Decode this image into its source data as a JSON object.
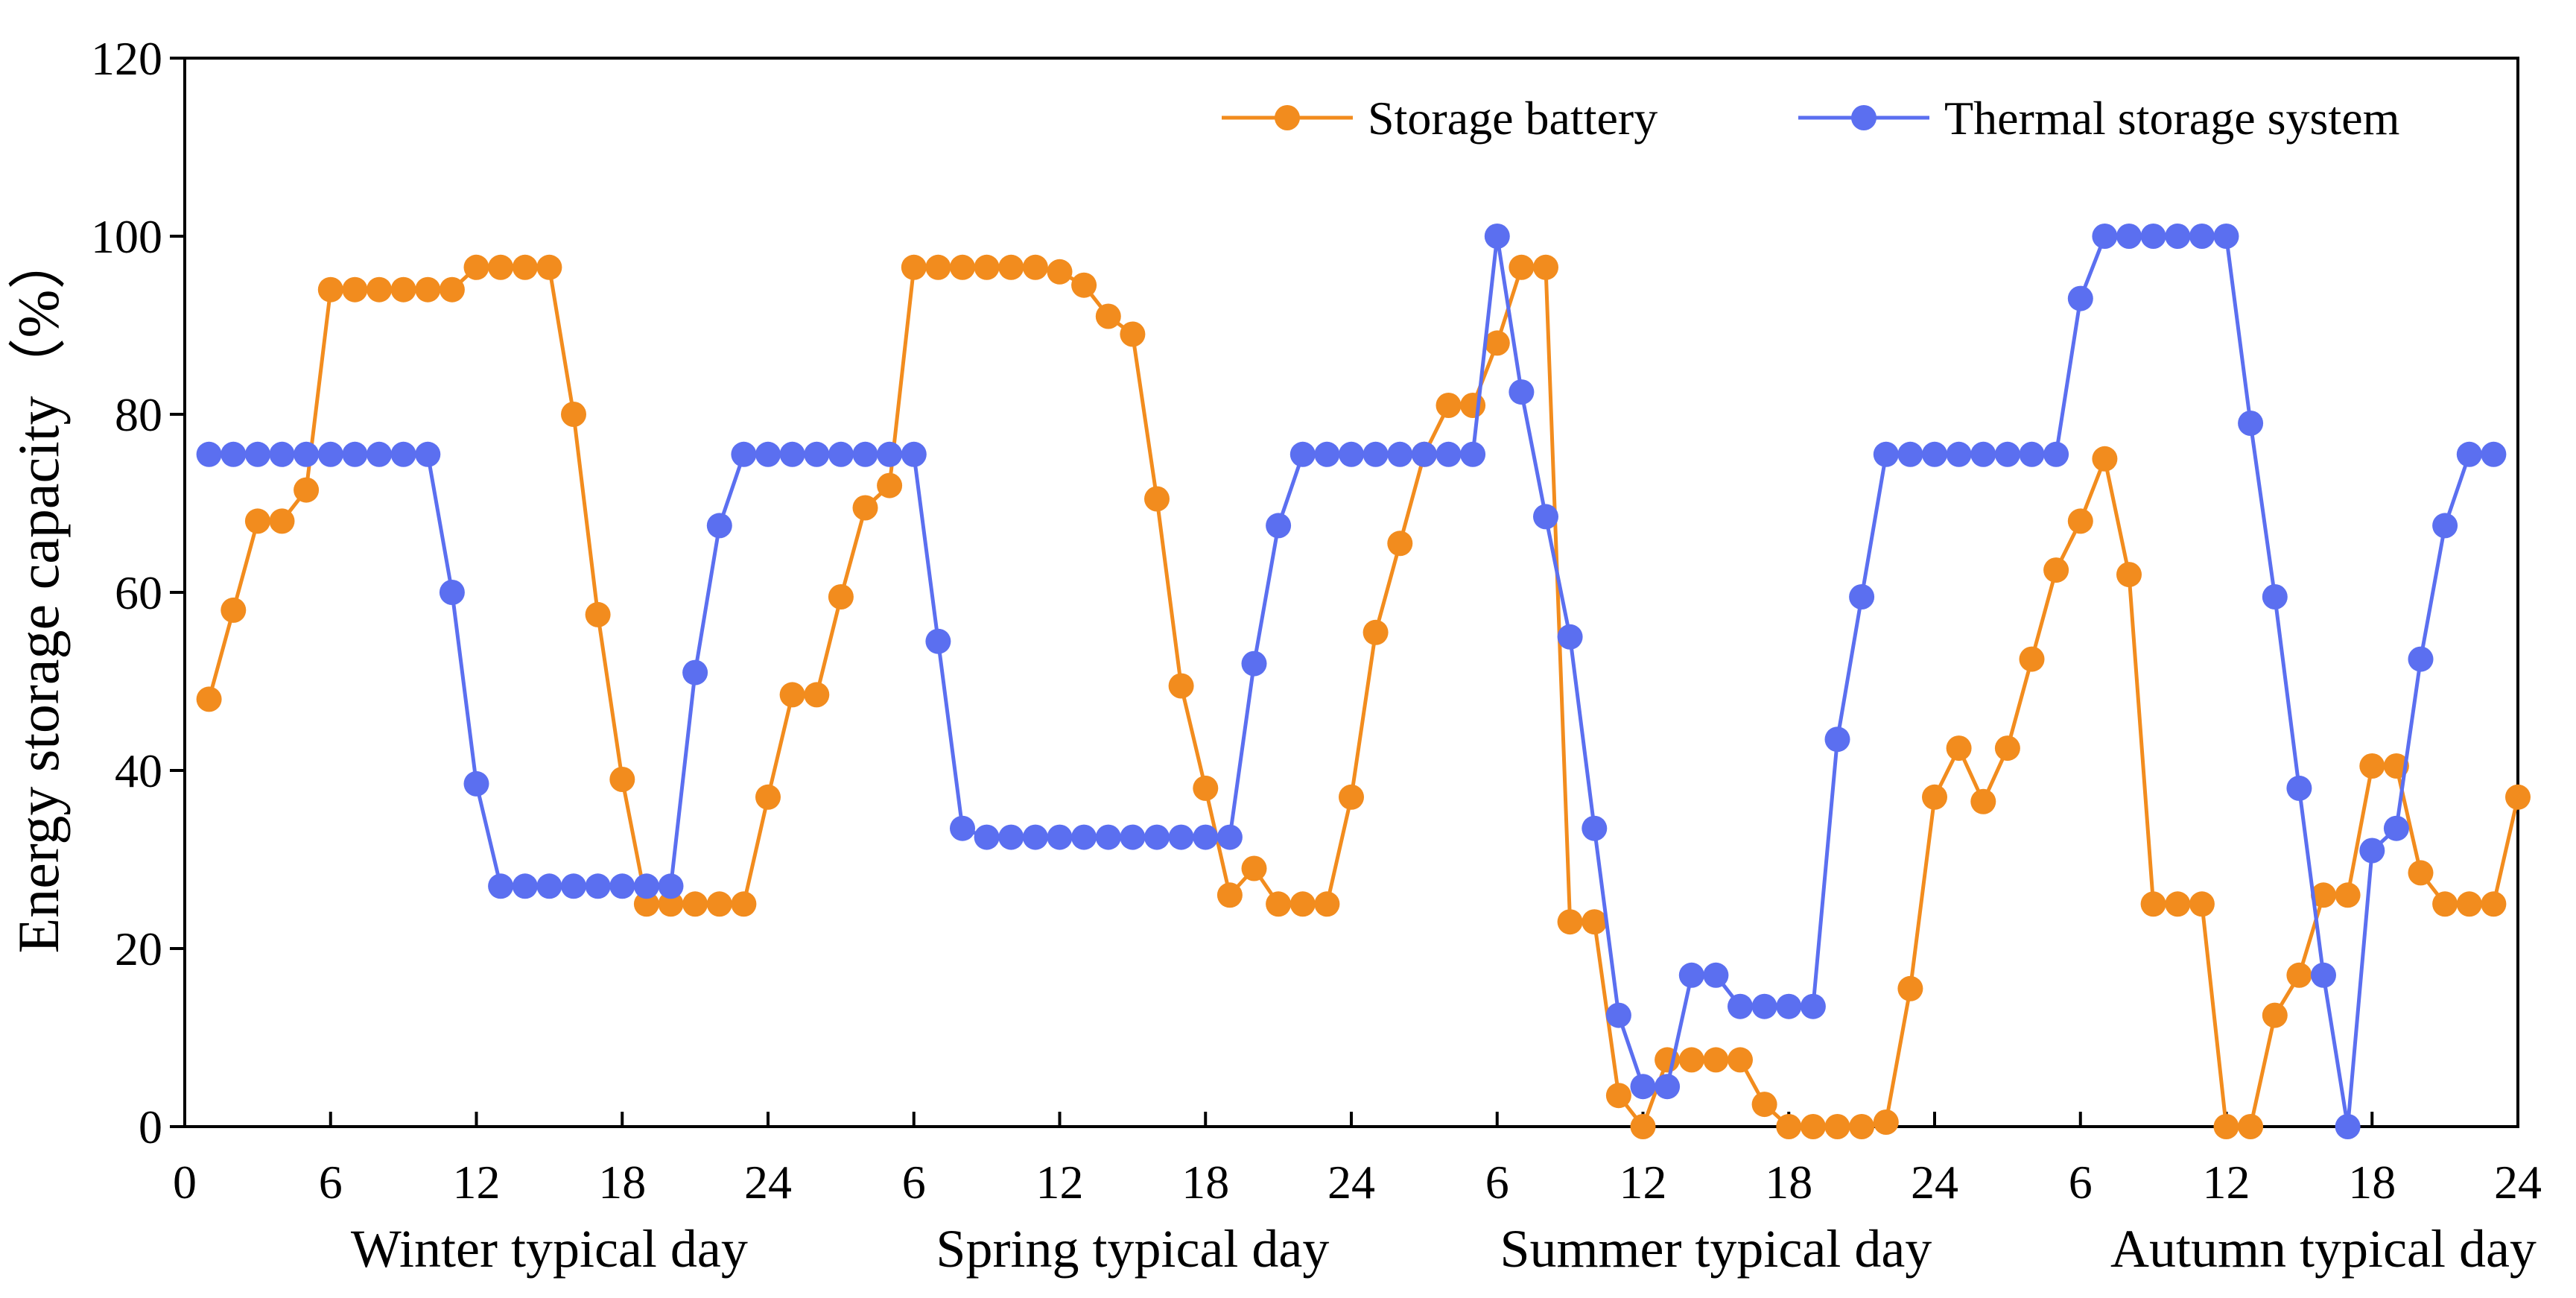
{
  "chart_data": {
    "type": "line",
    "ylabel": "Energy storage capacity（%）",
    "ylim": [
      0,
      120
    ],
    "yticks": [
      0,
      20,
      40,
      60,
      80,
      100,
      120
    ],
    "xlim": [
      0,
      96
    ],
    "xticks": [
      {
        "value": 0,
        "label": "0"
      },
      {
        "value": 6,
        "label": "6"
      },
      {
        "value": 12,
        "label": "12"
      },
      {
        "value": 18,
        "label": "18"
      },
      {
        "value": 24,
        "label": "24"
      },
      {
        "value": 30,
        "label": "6"
      },
      {
        "value": 36,
        "label": "12"
      },
      {
        "value": 42,
        "label": "18"
      },
      {
        "value": 48,
        "label": "24"
      },
      {
        "value": 54,
        "label": "6"
      },
      {
        "value": 60,
        "label": "12"
      },
      {
        "value": 66,
        "label": "18"
      },
      {
        "value": 72,
        "label": "24"
      },
      {
        "value": 78,
        "label": "6"
      },
      {
        "value": 84,
        "label": "12"
      },
      {
        "value": 90,
        "label": "18"
      },
      {
        "value": 96,
        "label": "24"
      }
    ],
    "season_labels": [
      {
        "center": 15,
        "label": "Winter typical day"
      },
      {
        "center": 39,
        "label": "Spring typical day"
      },
      {
        "center": 63,
        "label": "Summer typical day"
      },
      {
        "center": 88,
        "label": "Autumn typical day"
      }
    ],
    "legend_position": "top-right",
    "series": [
      {
        "name": "Storage battery",
        "color": "#F28C1E",
        "values": [
          48,
          58,
          68,
          68,
          71.5,
          94,
          94,
          94,
          94,
          94,
          94,
          96.5,
          96.5,
          96.5,
          96.5,
          80,
          57.5,
          39,
          25,
          25,
          25,
          25,
          25,
          37,
          48.5,
          48.5,
          59.5,
          69.5,
          72,
          96.5,
          96.5,
          96.5,
          96.5,
          96.5,
          96.5,
          96,
          94.5,
          91,
          89,
          70.5,
          49.5,
          38,
          26,
          29,
          25,
          25,
          25,
          37,
          55.5,
          65.5,
          75.5,
          81,
          81,
          88,
          96.5,
          96.5,
          23,
          23,
          3.5,
          0,
          7.5,
          7.5,
          7.5,
          7.5,
          2.5,
          0,
          0,
          0,
          0,
          0.5,
          15.5,
          37,
          42.5,
          36.5,
          42.5,
          52.5,
          62.5,
          68,
          75,
          62,
          25,
          25,
          25,
          0,
          0,
          12.5,
          17,
          26,
          26,
          40.5,
          40.5,
          28.5,
          25,
          25,
          25,
          37
        ]
      },
      {
        "name": "Thermal storage system",
        "color": "#5B6FF0",
        "values": [
          75.5,
          75.5,
          75.5,
          75.5,
          75.5,
          75.5,
          75.5,
          75.5,
          75.5,
          75.5,
          60,
          38.5,
          27,
          27,
          27,
          27,
          27,
          27,
          27,
          27,
          51,
          67.5,
          75.5,
          75.5,
          75.5,
          75.5,
          75.5,
          75.5,
          75.5,
          75.5,
          54.5,
          33.5,
          32.5,
          32.5,
          32.5,
          32.5,
          32.5,
          32.5,
          32.5,
          32.5,
          32.5,
          32.5,
          32.5,
          52,
          67.5,
          75.5,
          75.5,
          75.5,
          75.5,
          75.5,
          75.5,
          75.5,
          75.5,
          100,
          82.5,
          68.5,
          55,
          33.5,
          12.5,
          4.5,
          4.5,
          17,
          17,
          13.5,
          13.5,
          13.5,
          13.5,
          43.5,
          59.5,
          75.5,
          75.5,
          75.5,
          75.5,
          75.5,
          75.5,
          75.5,
          75.5,
          93,
          100,
          100,
          100,
          100,
          100,
          100,
          79,
          59.5,
          38,
          17,
          0,
          31,
          33.5,
          52.5,
          67.5,
          75.5,
          75.5
        ]
      }
    ]
  }
}
